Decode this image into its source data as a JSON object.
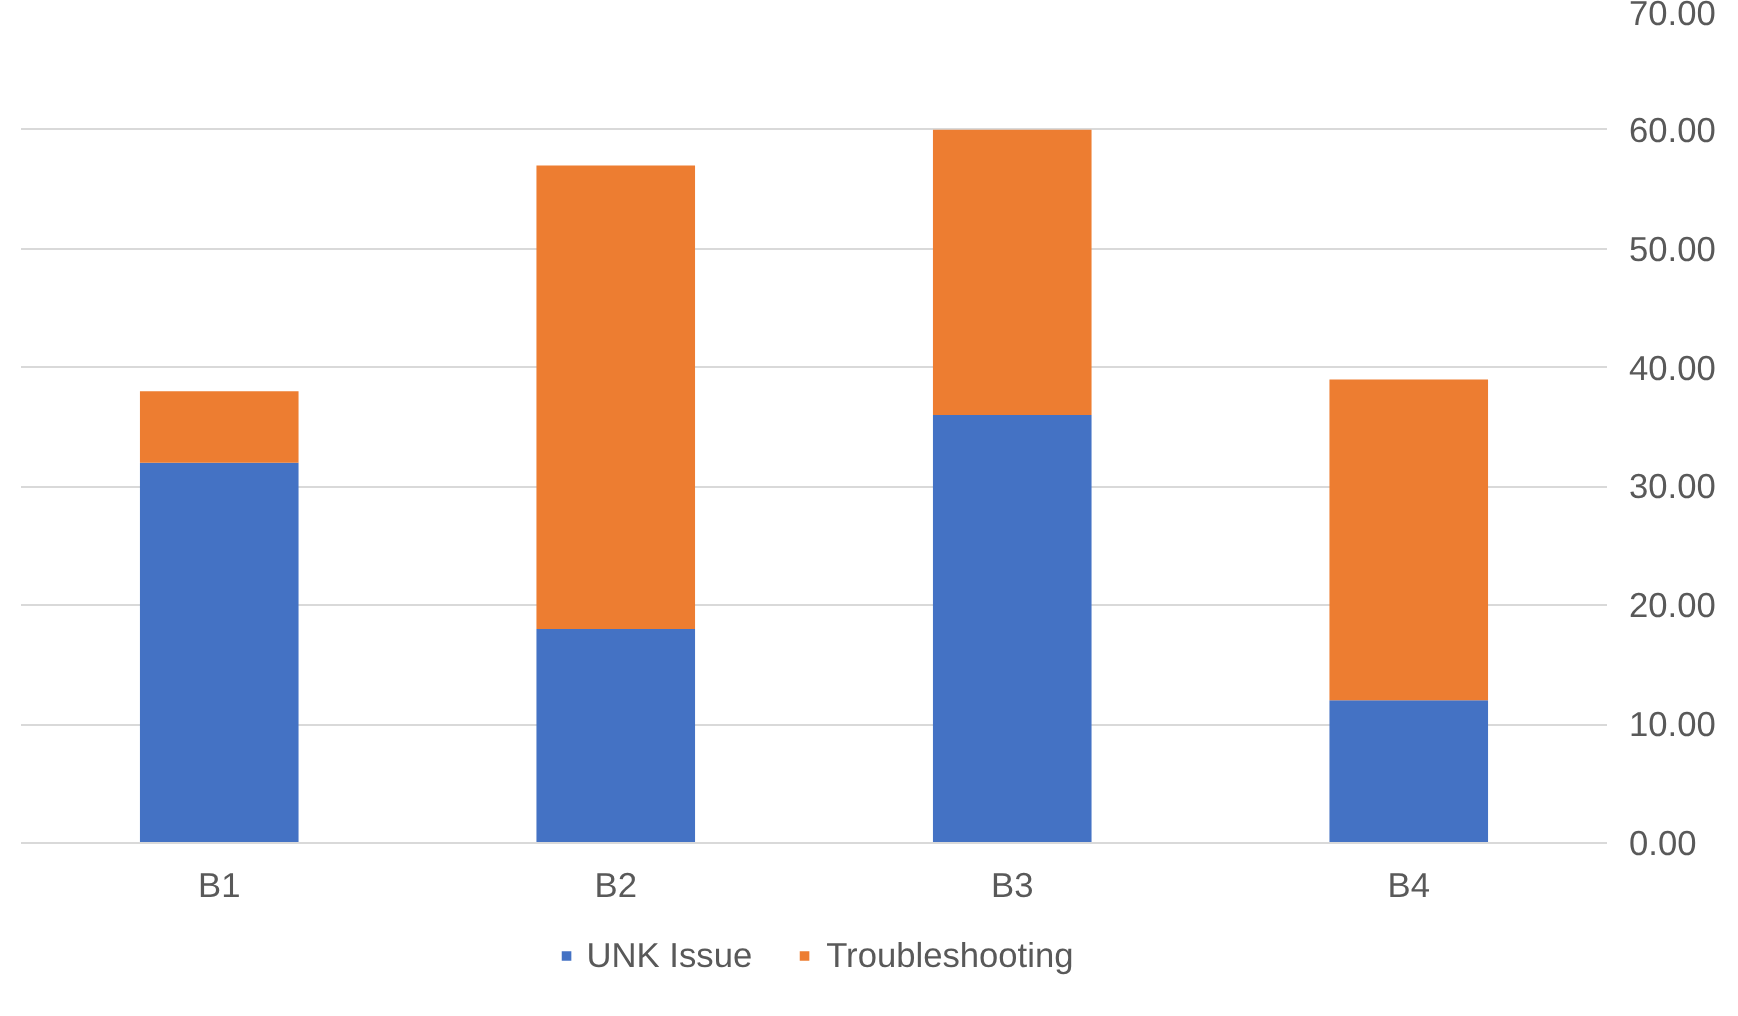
{
  "chart_data": {
    "type": "bar",
    "stacked": true,
    "categories": [
      "B1",
      "B2",
      "B3",
      "B4"
    ],
    "series": [
      {
        "name": "UNK Issue",
        "color": "#4472c4",
        "values": [
          32,
          18,
          36,
          12
        ]
      },
      {
        "name": "Troubleshooting",
        "color": "#ed7d31",
        "values": [
          6,
          39,
          24,
          27
        ]
      }
    ],
    "ylim": [
      0,
      70
    ],
    "yticks": [
      {
        "value": 0,
        "label": "0.00"
      },
      {
        "value": 10,
        "label": "10.00"
      },
      {
        "value": 20,
        "label": "20.00"
      },
      {
        "value": 30,
        "label": "30.00"
      },
      {
        "value": 40,
        "label": "40.00"
      },
      {
        "value": 50,
        "label": "50.00"
      },
      {
        "value": 60,
        "label": "60.00"
      },
      {
        "value": 70,
        "label": "70.00"
      }
    ],
    "grid": "y",
    "legend": "bottom"
  }
}
